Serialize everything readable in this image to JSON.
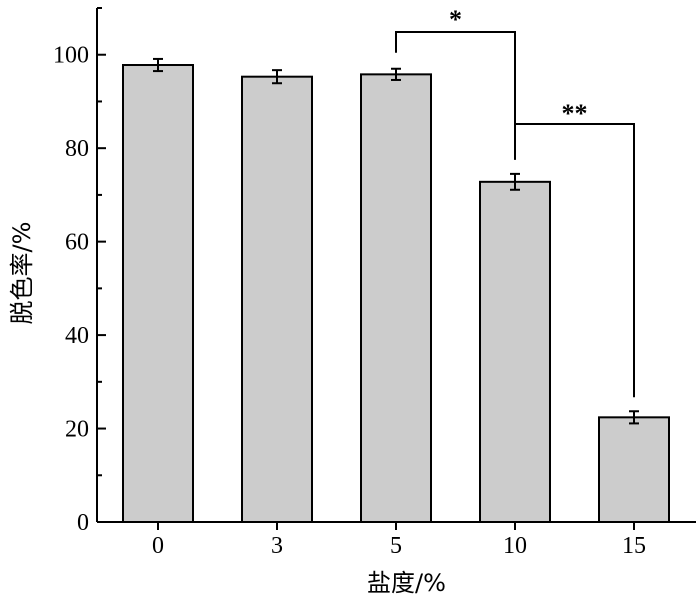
{
  "chart_data": {
    "type": "bar",
    "title": "",
    "xlabel": "盐度/%",
    "ylabel": "脱色率/%",
    "categories": [
      "0",
      "3",
      "5",
      "10",
      "15"
    ],
    "values": [
      97.8,
      95.3,
      95.8,
      72.8,
      22.4
    ],
    "errors": [
      1.3,
      1.4,
      1.2,
      1.7,
      1.3
    ],
    "ylim": [
      0,
      110
    ],
    "yticks": [
      0,
      20,
      40,
      60,
      80,
      100
    ],
    "ytick_labels": [
      "0",
      "20",
      "40",
      "60",
      "80",
      "100"
    ],
    "grid": false,
    "legend": "none",
    "bar_color": "#cccccc",
    "significance": [
      {
        "from": 2,
        "to": 3,
        "label": "*"
      },
      {
        "from": 3,
        "to": 4,
        "label": "**"
      }
    ]
  }
}
